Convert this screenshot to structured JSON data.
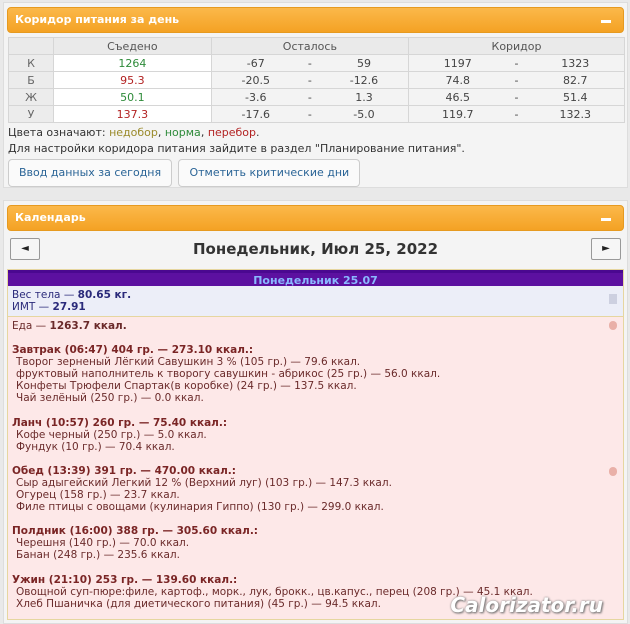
{
  "corridor": {
    "title": "Коридор питания за день",
    "headers": [
      "Съедено",
      "Осталось",
      "Коридор"
    ],
    "rows": [
      {
        "label": "К",
        "eaten": "1264",
        "eaten_color": "green",
        "rem_min": "-67",
        "rem_max": "59",
        "cor_min": "1197",
        "cor_max": "1323"
      },
      {
        "label": "Б",
        "eaten": "95.3",
        "eaten_color": "red",
        "rem_min": "-20.5",
        "rem_max": "-12.6",
        "cor_min": "74.8",
        "cor_max": "82.7"
      },
      {
        "label": "Ж",
        "eaten": "50.1",
        "eaten_color": "green",
        "rem_min": "-3.6",
        "rem_max": "1.3",
        "cor_min": "46.5",
        "cor_max": "51.4"
      },
      {
        "label": "У",
        "eaten": "137.3",
        "eaten_color": "red",
        "rem_min": "-17.6",
        "rem_max": "-5.0",
        "cor_min": "119.7",
        "cor_max": "132.3"
      }
    ],
    "sep": "-",
    "legend_prefix": "Цвета означают: ",
    "legend_under": "недобор",
    "legend_norm": "норма",
    "legend_over": "перебор",
    "comma": ", ",
    "dot": ".",
    "settings_note": "Для настройки коридора питания зайдите в раздел \"Планирование питания\".",
    "btn_today": "Ввод данных за сегодня",
    "btn_critical": "Отметить критические дни"
  },
  "calendar": {
    "title": "Календарь",
    "prev": "◄",
    "next": "►",
    "date": "Понедельник, Июл 25, 2022",
    "day_header": "Понедельник 25.07",
    "weight_label": "Вес тела — ",
    "weight": "80.65 кг.",
    "bmi_label": "ИМТ — ",
    "bmi": "27.91",
    "food_label": "Еда — ",
    "food_total": "1263.7 ккал.",
    "meals": [
      {
        "title": "Завтрак (06:47) 404 гр. — 273.10 ккал.:",
        "items": [
          "Творог зерненый Лёгкий Савушкин 3 % (105 гр.) — 79.6 ккал.",
          "фруктовый наполнитель к творогу савушкин - абрикос (25 гр.) — 56.0 ккал.",
          "Конфеты Трюфели Спартак(в коробке) (24 гр.) — 137.5 ккал.",
          "Чай зелёный (250 гр.) — 0.0 ккал."
        ]
      },
      {
        "title": "Ланч (10:57) 260 гр. — 75.40 ккал.:",
        "items": [
          "Кофе черный (250 гр.) — 5.0 ккал.",
          "Фундук (10 гр.) — 70.4 ккал."
        ]
      },
      {
        "title": "Обед (13:39) 391 гр. — 470.00 ккал.:",
        "items": [
          "Сыр адыгейский Легкий 12 % (Верхний луг) (103 гр.) — 147.3 ккал.",
          "Огурец (158 гр.) — 23.7 ккал.",
          "Филе птицы с овощами (кулинария Гиппо) (130 гр.) — 299.0 ккал."
        ]
      },
      {
        "title": "Полдник (16:00) 388 гр. — 305.60 ккал.:",
        "items": [
          "Черешня (140 гр.) — 70.0 ккал.",
          "Банан (248 гр.) — 235.6 ккал."
        ]
      },
      {
        "title": "Ужин (21:10) 253 гр. — 139.60 ккал.:",
        "items": [
          "Овощной суп-пюре:филе, картоф., морк., лук, брокк., цв.капус., перец (208 гр.) — 45.1 ккал.",
          "Хлеб Пшаничка (для диетического питания) (45 гр.) — 94.5 ккал."
        ]
      }
    ]
  },
  "watermark": "Calorizator.ru"
}
